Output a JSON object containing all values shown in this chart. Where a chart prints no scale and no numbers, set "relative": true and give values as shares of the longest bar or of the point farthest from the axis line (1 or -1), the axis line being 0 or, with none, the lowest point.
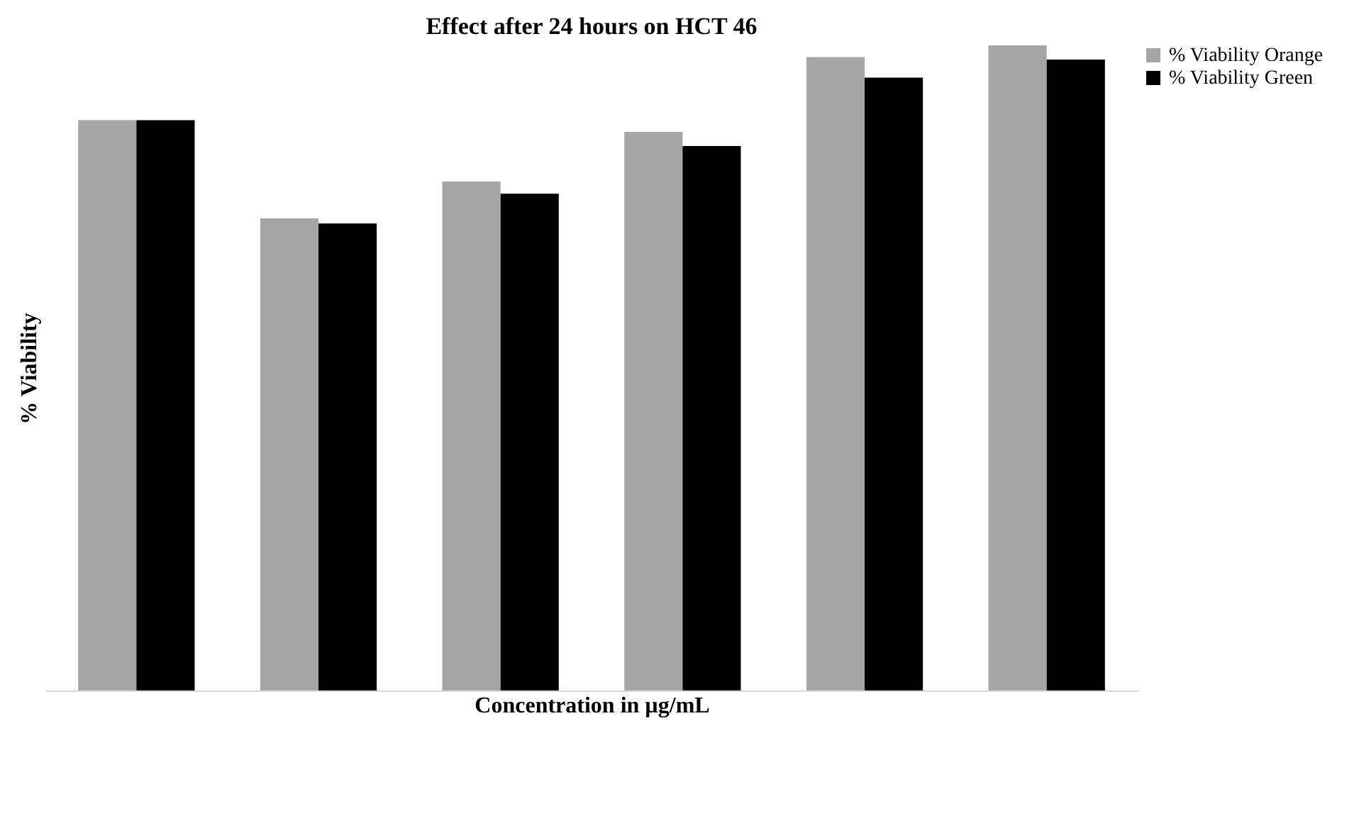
{
  "chart_data": {
    "type": "bar",
    "title": "Effect after 24 hours on HCT 46",
    "xlabel": "Concentration in µg/mL",
    "ylabel": "% Viability",
    "relative": true,
    "legend": "right",
    "categories": [
      null,
      null,
      null,
      null,
      null,
      null
    ],
    "series": [
      {
        "name": "% Viability Orange",
        "color": "#a6a6a6",
        "values": [
          0.884,
          0.732,
          0.789,
          0.866,
          0.982,
          1.0
        ]
      },
      {
        "name": "% Viability Green",
        "color": "#000000",
        "values": [
          0.884,
          0.724,
          0.77,
          0.844,
          0.95,
          0.978
        ]
      }
    ]
  }
}
